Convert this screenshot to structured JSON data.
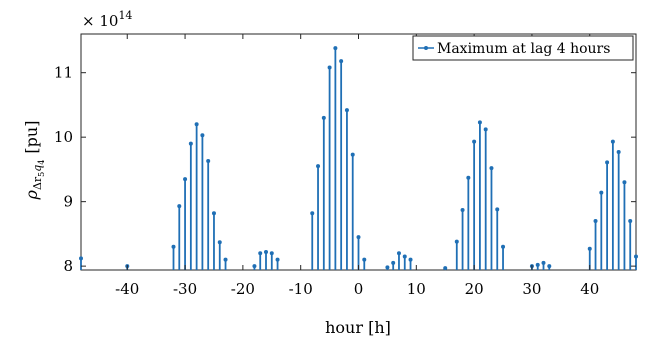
{
  "chart_data": {
    "type": "stem",
    "xlabel": "hour [h]",
    "ylabel_base": "ρ",
    "ylabel_sub": "Δr",
    "ylabel_sub2": "5",
    "ylabel_sub3": "q",
    "ylabel_sub4": "4",
    "ylabel_unit": "[pu]",
    "exponent_prefix": "× 10",
    "exponent_power": "14",
    "xlim": [
      -48,
      48
    ],
    "ylim": [
      7.94,
      11.6
    ],
    "baseline": 7.94,
    "xticks": [
      -40,
      -30,
      -20,
      -10,
      0,
      10,
      20,
      30,
      40
    ],
    "xtick_labels": [
      "-40",
      "-30",
      "-20",
      "-10",
      "0",
      "10",
      "20",
      "30",
      "40"
    ],
    "yticks": [
      8,
      9,
      10,
      11
    ],
    "ytick_labels": [
      "8",
      "9",
      "10",
      "11"
    ],
    "grid": false,
    "legend_position": "top-right",
    "color": "#1f6fb5",
    "series": [
      {
        "name": "Maximum at lag 4 hours",
        "x": [
          -48,
          -40,
          -32,
          -31,
          -30,
          -29,
          -28,
          -27,
          -26,
          -25,
          -24,
          -23,
          -18,
          -17,
          -16,
          -15,
          -14,
          -8,
          -7,
          -6,
          -5,
          -4,
          -3,
          -2,
          -1,
          0,
          1,
          5,
          6,
          7,
          8,
          9,
          15,
          17,
          18,
          19,
          20,
          21,
          22,
          23,
          24,
          25,
          30,
          31,
          32,
          33,
          40,
          41,
          42,
          43,
          44,
          45,
          46,
          47,
          48
        ],
        "y": [
          8.12,
          8.0,
          8.3,
          8.93,
          9.35,
          9.9,
          10.2,
          10.03,
          9.63,
          8.82,
          8.37,
          8.1,
          8.0,
          8.2,
          8.22,
          8.2,
          8.1,
          8.82,
          9.55,
          10.3,
          11.08,
          11.38,
          11.18,
          10.42,
          9.73,
          8.45,
          8.1,
          7.98,
          8.05,
          8.2,
          8.15,
          8.1,
          7.97,
          8.38,
          8.87,
          9.37,
          9.93,
          10.23,
          10.12,
          9.52,
          8.88,
          8.3,
          8.0,
          8.02,
          8.05,
          8.0,
          8.27,
          8.7,
          9.14,
          9.61,
          9.93,
          9.77,
          9.3,
          8.7,
          8.15
        ]
      }
    ]
  }
}
